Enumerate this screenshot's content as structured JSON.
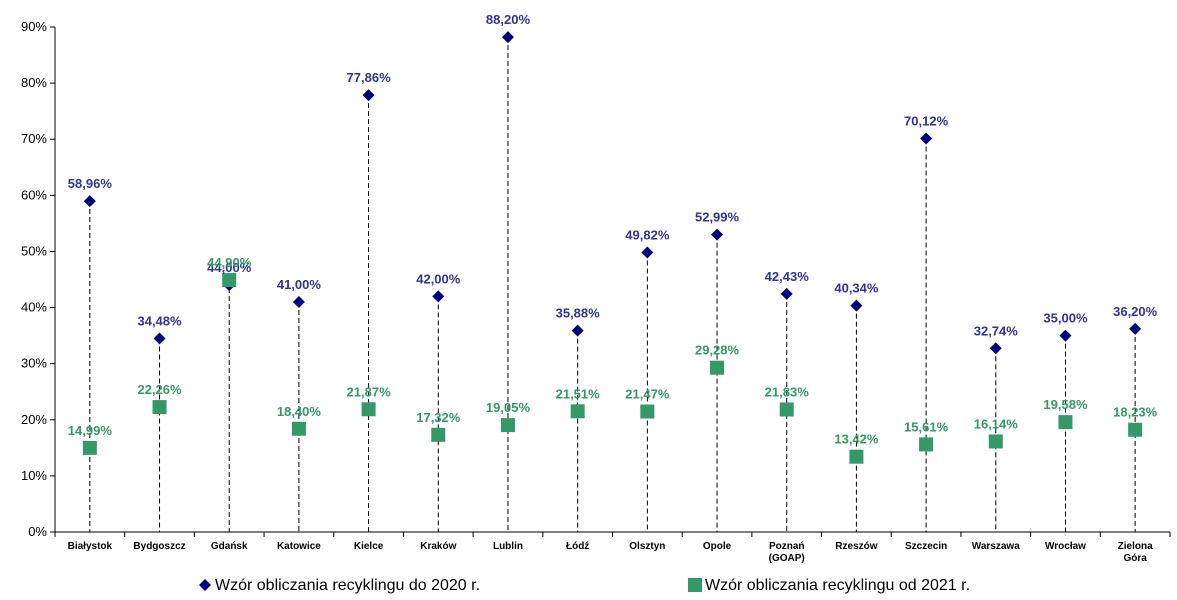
{
  "chart_data": {
    "type": "scatter",
    "categories": [
      [
        "Białystok"
      ],
      [
        "Bydgoszcz"
      ],
      [
        "Gdańsk"
      ],
      [
        "Katowice"
      ],
      [
        "Kielce"
      ],
      [
        "Kraków"
      ],
      [
        "Lublin"
      ],
      [
        "Łódź"
      ],
      [
        "Olsztyn"
      ],
      [
        "Opole"
      ],
      [
        "Poznań",
        "(GOAP)"
      ],
      [
        "Rzeszów"
      ],
      [
        "Szczecin"
      ],
      [
        "Warszawa"
      ],
      [
        "Wrocław"
      ],
      [
        "Zielona",
        "Góra"
      ]
    ],
    "ylim": [
      0,
      90
    ],
    "yticks": [
      {
        "v": 0,
        "label": "0%"
      },
      {
        "v": 10,
        "label": "10%"
      },
      {
        "v": 20,
        "label": "20%"
      },
      {
        "v": 30,
        "label": "30%"
      },
      {
        "v": 40,
        "label": "40%"
      },
      {
        "v": 50,
        "label": "50%"
      },
      {
        "v": 60,
        "label": "60%"
      },
      {
        "v": 70,
        "label": "70%"
      },
      {
        "v": 80,
        "label": "80%"
      },
      {
        "v": 90,
        "label": "90%"
      }
    ],
    "grid": false,
    "legend_position": "bottom",
    "series": [
      {
        "name": "Wzór obliczania recyklingu do 2020 r.",
        "marker": "diamond",
        "color": "#000080",
        "label_color": "#333399",
        "values": [
          58.96,
          34.48,
          44.0,
          41.0,
          77.86,
          42.0,
          88.2,
          35.88,
          49.82,
          52.99,
          42.43,
          40.34,
          70.12,
          32.74,
          35.0,
          36.2
        ],
        "labels": [
          "58,96%",
          "34,48%",
          "44,00%",
          "41,00%",
          "77,86%",
          "42,00%",
          "88,20%",
          "35,88%",
          "49,82%",
          "52,99%",
          "42,43%",
          "40,34%",
          "70,12%",
          "32,74%",
          "35,00%",
          "36,20%"
        ]
      },
      {
        "name": "Wzór obliczania recyklingu od 2021 r.",
        "marker": "square",
        "color": "#339966",
        "label_color": "#339966",
        "values": [
          14.99,
          22.26,
          44.9,
          18.4,
          21.87,
          17.32,
          19.05,
          21.51,
          21.47,
          29.28,
          21.83,
          13.42,
          15.61,
          16.14,
          19.58,
          18.23
        ],
        "labels": [
          "14,99%",
          "22,26%",
          "44,90%",
          "18,40%",
          "21,87%",
          "17,32%",
          "19,05%",
          "21,51%",
          "21,47%",
          "29,28%",
          "21,83%",
          "13,42%",
          "15,61%",
          "16,14%",
          "19,58%",
          "18,23%"
        ]
      }
    ]
  }
}
